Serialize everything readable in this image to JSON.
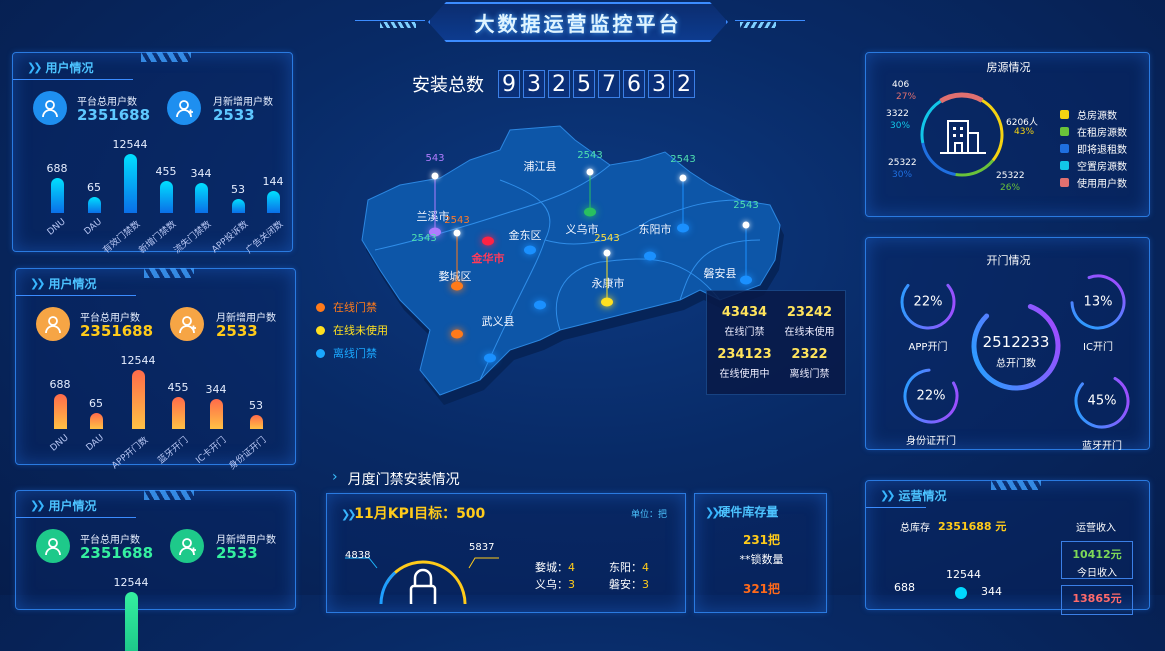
{
  "header": {
    "title": "大数据运营监控平台",
    "install_label": "安装总数",
    "install_digits": [
      "9",
      "3",
      "2",
      "5",
      "7",
      "6",
      "3",
      "2"
    ]
  },
  "user_panels": [
    {
      "title": "用户情况",
      "theme": "#1e8ff0",
      "value_color": "#5ec8ff",
      "total_label": "平台总用户数",
      "total_value": "2351688",
      "new_label": "月新增用户数",
      "new_value": "2533",
      "bars": [
        {
          "label": "DNU",
          "value": 688
        },
        {
          "label": "DAU",
          "value": 65
        },
        {
          "label": "有效门禁数",
          "value": 12544
        },
        {
          "label": "新增门禁数",
          "value": 455
        },
        {
          "label": "流失门禁数",
          "value": 344
        },
        {
          "label": "APP投诉数",
          "value": 53
        },
        {
          "label": "广告关闭数",
          "value": 144
        }
      ],
      "bar_colors": [
        "#00e0ff",
        "#0a6fe8"
      ]
    },
    {
      "title": "用户情况",
      "theme": "#f6a545",
      "value_color": "#ffcb1a",
      "total_label": "平台总用户数",
      "total_value": "2351688",
      "new_label": "月新增用户数",
      "new_value": "2533",
      "bars": [
        {
          "label": "DNU",
          "value": 688
        },
        {
          "label": "DAU",
          "value": 65
        },
        {
          "label": "APP开门数",
          "value": 12544
        },
        {
          "label": "蓝牙开门",
          "value": 455
        },
        {
          "label": "IC卡开门",
          "value": 344
        },
        {
          "label": "身份证开门",
          "value": 53
        }
      ],
      "bar_colors": [
        "#ff6b4a",
        "#ffc145"
      ]
    },
    {
      "title": "用户情况",
      "theme": "#1ec98a",
      "value_color": "#35f0a0",
      "total_label": "平台总用户数",
      "total_value": "2351688",
      "new_label": "月新增用户数",
      "new_value": "2533",
      "bars": [
        {
          "label": "",
          "value": 12544
        }
      ],
      "bar_colors": [
        "#35f0a0",
        "#1ec98a"
      ]
    }
  ],
  "map": {
    "regions": [
      {
        "name": "浦江县"
      },
      {
        "name": "兰溪市"
      },
      {
        "name": "金东区"
      },
      {
        "name": "义乌市"
      },
      {
        "name": "东阳市"
      },
      {
        "name": "金华市"
      },
      {
        "name": "婺城区"
      },
      {
        "name": "永康市"
      },
      {
        "name": "磐安县"
      },
      {
        "name": "武义县"
      }
    ],
    "pins": [
      {
        "value": "543",
        "color": "#b07cff"
      },
      {
        "value": "2543",
        "color": "#ff7a2a"
      },
      {
        "value": "2543",
        "color": "#4fe0b0"
      },
      {
        "value": "2543",
        "color": "#4fe0b0"
      },
      {
        "value": "2543",
        "color": "#4fe0b0"
      },
      {
        "value": "2543",
        "color": "#4fe0b0"
      },
      {
        "value": "2543",
        "color": "#ffe040"
      }
    ],
    "legend": [
      {
        "label": "在线门禁",
        "color": "#ff7a1a"
      },
      {
        "label": "在线未使用",
        "color": "#ffe020"
      },
      {
        "label": "离线门禁",
        "color": "#1aa8ff"
      }
    ],
    "stats": [
      {
        "value": "43434",
        "label": "在线门禁"
      },
      {
        "value": "23242",
        "label": "在线未使用"
      },
      {
        "value": "234123",
        "label": "在线使用中"
      },
      {
        "value": "2322",
        "label": "离线门禁"
      }
    ]
  },
  "monthly": {
    "title": "月度门禁安装情况",
    "kpi_title": "11月KPI目标：500",
    "unit": "单位：把",
    "gauge_left": "4838",
    "gauge_right": "5837",
    "cities": [
      {
        "name": "婺城：",
        "value": "4"
      },
      {
        "name": "东阳：",
        "value": "4"
      },
      {
        "name": "义乌：",
        "value": "3"
      },
      {
        "name": "磐安：",
        "value": "3"
      }
    ]
  },
  "stock": {
    "title": "硬件库存量",
    "value1": "231把",
    "label1": "**锁数量",
    "value2": "321把"
  },
  "housing": {
    "title": "房源情况",
    "segments": [
      {
        "label": "总房源数",
        "value": "6206人",
        "pct": "43%",
        "share": 43,
        "color": "#f5d312"
      },
      {
        "label": "在租房源数",
        "value": "25322",
        "pct": "26%",
        "share": 26,
        "color": "#6ac23a"
      },
      {
        "label": "即将退租数",
        "value": "25322",
        "pct": "30%",
        "share": 30,
        "color": "#1f6fe0"
      },
      {
        "label": "空置房源数",
        "value": "3322",
        "pct": "30%",
        "share": 30,
        "color": "#12c6e8"
      },
      {
        "label": "使用用户数",
        "value": "406",
        "pct": "27%",
        "share": 27,
        "color": "#e07070"
      }
    ]
  },
  "door": {
    "title": "开门情况",
    "total_value": "2512233",
    "total_label": "总开门数",
    "rings": [
      {
        "pct": "22%",
        "level": 0.72,
        "label": "APP开门"
      },
      {
        "pct": "13%",
        "level": 0.8,
        "label": "IC开门"
      },
      {
        "pct": "22%",
        "level": 0.82,
        "label": "身份证开门"
      },
      {
        "pct": "45%",
        "level": 0.78,
        "label": "蓝牙开门"
      }
    ]
  },
  "ops": {
    "title": "运营情况",
    "stock_label": "总库存",
    "stock_value": "2351688 元",
    "income_title": "运营收入",
    "today_value": "10412元",
    "today_label": "今日收入",
    "second_value": "13865元",
    "chart_values": [
      "688",
      "12544",
      "344"
    ]
  }
}
